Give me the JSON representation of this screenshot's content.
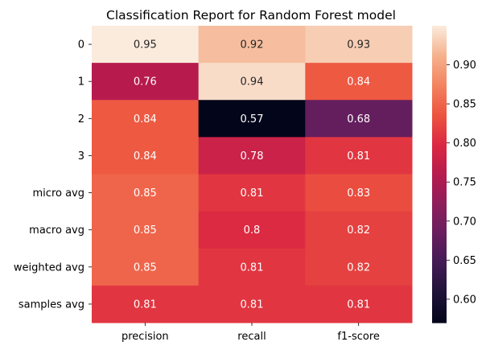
{
  "chart_data": {
    "type": "heatmap",
    "title": "Classification Report for Random Forest model",
    "rows": [
      "0",
      "1",
      "2",
      "3",
      "micro avg",
      "macro avg",
      "weighted avg",
      "samples avg"
    ],
    "columns": [
      "precision",
      "recall",
      "f1-score"
    ],
    "values": [
      [
        0.95,
        0.92,
        0.93
      ],
      [
        0.76,
        0.94,
        0.84
      ],
      [
        0.84,
        0.57,
        0.68
      ],
      [
        0.84,
        0.78,
        0.81
      ],
      [
        0.85,
        0.81,
        0.83
      ],
      [
        0.85,
        0.8,
        0.82
      ],
      [
        0.85,
        0.81,
        0.82
      ],
      [
        0.81,
        0.81,
        0.81
      ]
    ],
    "colorbar": {
      "range": [
        0.57,
        0.95
      ],
      "ticks": [
        "0.60",
        "0.65",
        "0.70",
        "0.75",
        "0.80",
        "0.85",
        "0.90"
      ],
      "colormap": "rocket"
    },
    "grid": false
  }
}
